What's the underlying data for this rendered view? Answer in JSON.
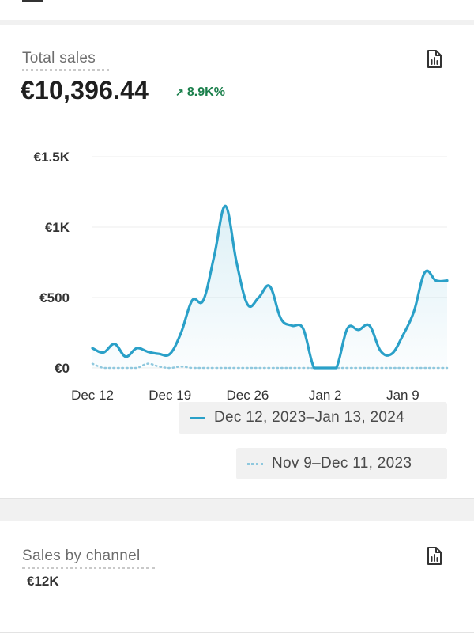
{
  "card1": {
    "title": "Total sales",
    "total_value": "€10,396.44",
    "change": {
      "arrow": "↗",
      "label": "8.9K%"
    }
  },
  "chart_data": {
    "type": "line",
    "title": "Total sales",
    "x_tick_labels": [
      "Dec 12",
      "Dec 19",
      "Dec 26",
      "Jan 2",
      "Jan 9"
    ],
    "y_tick_labels": [
      "€0",
      "€500",
      "€1K",
      "€1.5K"
    ],
    "y_ticks": [
      0,
      500,
      1000,
      1500
    ],
    "ylim": [
      0,
      1500
    ],
    "grid": true,
    "legend_position": "bottom-right",
    "series": [
      {
        "name": "Dec 12, 2023–Jan 13, 2024",
        "style": "solid",
        "color": "#2aa0c8",
        "x": [
          "2023-12-12",
          "2023-12-13",
          "2023-12-14",
          "2023-12-15",
          "2023-12-16",
          "2023-12-17",
          "2023-12-18",
          "2023-12-19",
          "2023-12-20",
          "2023-12-21",
          "2023-12-22",
          "2023-12-23",
          "2023-12-24",
          "2023-12-25",
          "2023-12-26",
          "2023-12-27",
          "2023-12-28",
          "2023-12-29",
          "2023-12-30",
          "2023-12-31",
          "2024-01-01",
          "2024-01-02",
          "2024-01-03",
          "2024-01-04",
          "2024-01-05",
          "2024-01-06",
          "2024-01-07",
          "2024-01-08",
          "2024-01-09",
          "2024-01-10",
          "2024-01-11",
          "2024-01-12",
          "2024-01-13"
        ],
        "values": [
          140,
          110,
          170,
          80,
          140,
          115,
          100,
          100,
          250,
          480,
          480,
          800,
          1150,
          750,
          450,
          500,
          580,
          350,
          300,
          280,
          0,
          0,
          0,
          280,
          270,
          300,
          120,
          100,
          230,
          400,
          680,
          620,
          620
        ]
      },
      {
        "name": "Nov 9–Dec 11, 2023",
        "style": "dotted",
        "color": "#8fc8de",
        "x": [
          "2023-12-12",
          "2023-12-13",
          "2023-12-14",
          "2023-12-15",
          "2023-12-16",
          "2023-12-17",
          "2023-12-18",
          "2023-12-19",
          "2023-12-20",
          "2023-12-21",
          "2023-12-22",
          "2023-12-23",
          "2023-12-24",
          "2023-12-25",
          "2023-12-26",
          "2023-12-27",
          "2023-12-28",
          "2023-12-29",
          "2023-12-30",
          "2023-12-31",
          "2024-01-01",
          "2024-01-02",
          "2024-01-03",
          "2024-01-04",
          "2024-01-05",
          "2024-01-06",
          "2024-01-07",
          "2024-01-08",
          "2024-01-09",
          "2024-01-10",
          "2024-01-11",
          "2024-01-12",
          "2024-01-13"
        ],
        "values": [
          30,
          0,
          0,
          0,
          0,
          30,
          10,
          0,
          10,
          0,
          0,
          0,
          0,
          0,
          0,
          0,
          0,
          0,
          0,
          0,
          0,
          0,
          0,
          0,
          0,
          0,
          0,
          0,
          0,
          0,
          0,
          0,
          0
        ]
      }
    ]
  },
  "card2": {
    "title": "Sales by channel",
    "first_tick": "€12K"
  },
  "colors": {
    "series_current": "#2aa0c8",
    "series_previous": "#8fc8de",
    "positive_change": "#1a7f4b",
    "grid": "#ececec"
  },
  "icons": {
    "report": "report-icon",
    "menu": "menu-icon"
  }
}
